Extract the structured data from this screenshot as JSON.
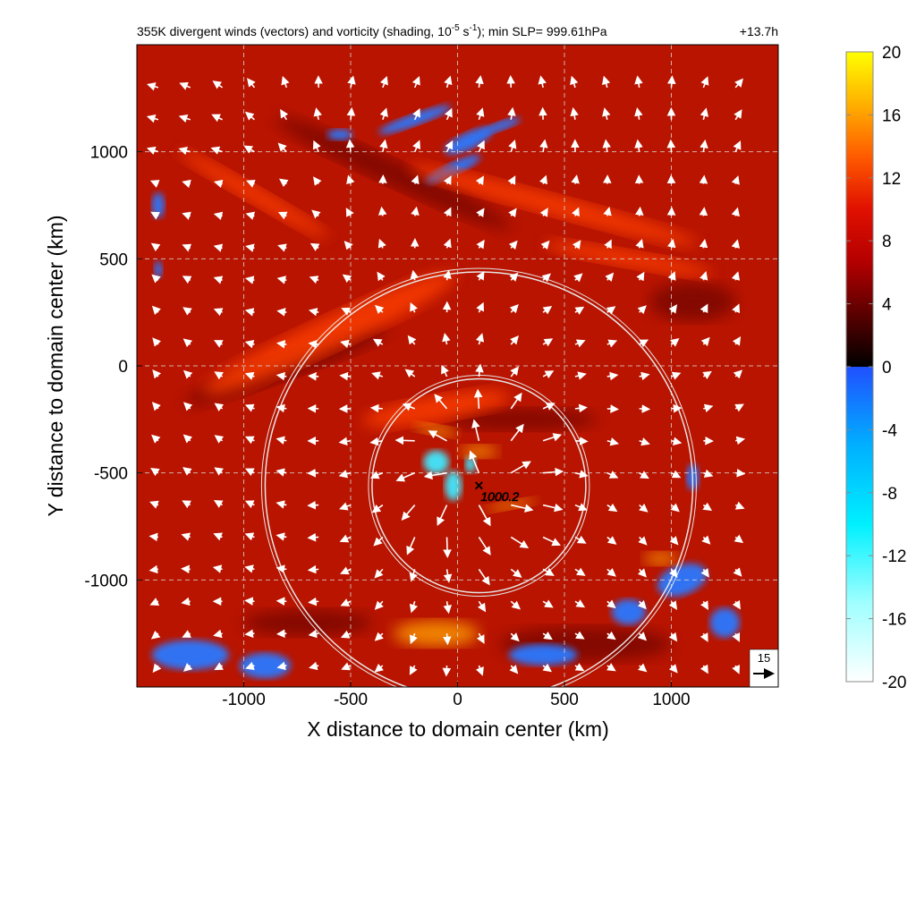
{
  "chart_data": {
    "type": "heatmap",
    "title": "355K divergent winds (vectors) and vorticity (shading, 10",
    "title_exp1": "-5",
    "title_mid": " s",
    "title_exp2": "-1",
    "title_end": "); min SLP= 999.61hPa",
    "time_label": "+13.7h",
    "xlabel": "X distance to domain center (km)",
    "ylabel": "Y distance to domain center (km)",
    "xlim": [
      -1500,
      1500
    ],
    "ylim": [
      -1500,
      1500
    ],
    "xticks": [
      -1000,
      -500,
      0,
      500,
      1000
    ],
    "yticks": [
      -1000,
      -500,
      0,
      500,
      1000
    ],
    "grid": true,
    "grid_style": "dashed",
    "colorbar": {
      "ticks": [
        20,
        16,
        12,
        8,
        4,
        0,
        -4,
        -8,
        -12,
        -16,
        -20
      ],
      "range": [
        -20,
        20
      ],
      "colors_positive": [
        "#000000",
        "#5a0000",
        "#b40000",
        "#e01000",
        "#ff5a00",
        "#ffb000",
        "#ffff00"
      ],
      "colors_negative": [
        "#ffffff",
        "#a0ffff",
        "#00f0ff",
        "#00b0ff",
        "#2050ff"
      ]
    },
    "center_marker": {
      "x": 100,
      "y": -560,
      "label": "1000.2"
    },
    "range_rings_km": [
      500,
      1000
    ],
    "reference_vector": {
      "label": "15"
    },
    "background_value": 8,
    "features": [
      {
        "kind": "negative_band",
        "x": 100,
        "y": 1050,
        "value": -8
      },
      {
        "kind": "negative_patch",
        "x": -50,
        "y": -500,
        "value": -14
      },
      {
        "kind": "negative_patch",
        "x": 1150,
        "y": -1100,
        "value": -8
      },
      {
        "kind": "negative_patch",
        "x": -1200,
        "y": -1350,
        "value": -8
      },
      {
        "kind": "positive_band",
        "x": -300,
        "y": 300,
        "value": 10
      },
      {
        "kind": "positive_max",
        "x": 300,
        "y": -620,
        "value": 16
      }
    ]
  },
  "colors": {
    "field_base": "#b81400",
    "vector": "#ffffff",
    "ring": "#e6e6e6"
  }
}
